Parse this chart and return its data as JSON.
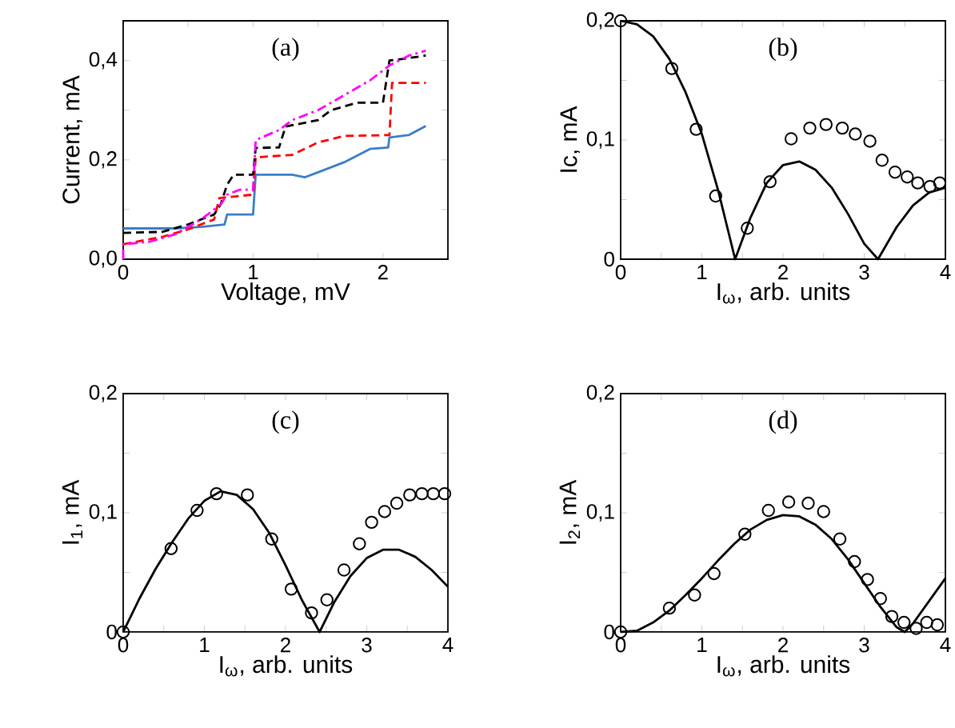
{
  "chart_data": [
    {
      "type": "line",
      "annotations": [
        "(a)"
      ],
      "xlabel": "Voltage, mV",
      "ylabel": "Current, mA",
      "xlim": [
        0,
        2.5
      ],
      "ylim": [
        0,
        0.48
      ],
      "xticks": [
        0,
        {
          "value": 0.5,
          "label": null
        },
        1,
        {
          "value": 1.5,
          "label": null
        },
        2
      ],
      "yticks": [
        {
          "value": 0,
          "label": "0,0"
        },
        {
          "value": 0.1,
          "label": null
        },
        {
          "value": 0.2,
          "label": "0,2"
        },
        {
          "value": 0.3,
          "label": null
        },
        {
          "value": 0.4,
          "label": "0,4"
        }
      ],
      "series": [
        {
          "color": "#3a7dc9",
          "line_style": "solid",
          "x": [
            0,
            0.4,
            0.6,
            0.78,
            0.8,
            1.0,
            1.02,
            1.3,
            1.4,
            1.5,
            1.7,
            1.9,
            2.04,
            2.05,
            2.2,
            2.33
          ],
          "values": [
            0.062,
            0.062,
            0.065,
            0.07,
            0.09,
            0.09,
            0.17,
            0.17,
            0.165,
            0.175,
            0.195,
            0.222,
            0.225,
            0.245,
            0.25,
            0.268
          ]
        },
        {
          "color": "#ff0000",
          "line_style": "dashed",
          "x": [
            0,
            0.3,
            0.5,
            0.7,
            0.74,
            1.0,
            1.02,
            1.3,
            1.5,
            1.7,
            2.05,
            2.07,
            2.33
          ],
          "values": [
            0.03,
            0.045,
            0.06,
            0.08,
            0.123,
            0.13,
            0.205,
            0.21,
            0.235,
            0.248,
            0.25,
            0.355,
            0.355
          ]
        },
        {
          "color": "#000000",
          "line_style": "dashed",
          "x": [
            0,
            0.3,
            0.5,
            0.7,
            0.75,
            0.8,
            0.85,
            1.0,
            1.02,
            1.2,
            1.25,
            1.5,
            1.6,
            1.8,
            2.0,
            2.05,
            2.2,
            2.33
          ],
          "values": [
            0.053,
            0.055,
            0.07,
            0.09,
            0.11,
            0.15,
            0.17,
            0.17,
            0.224,
            0.225,
            0.267,
            0.28,
            0.3,
            0.315,
            0.315,
            0.4,
            0.405,
            0.41
          ]
        },
        {
          "color": "#ff00ff",
          "line_style": "dotted",
          "x": [
            0,
            0,
            0.2,
            0.4,
            0.6,
            0.75,
            0.8,
            0.9,
            1.0,
            1.02,
            1.2,
            1.3,
            1.5,
            1.7,
            1.9,
            2.05,
            2.2,
            2.33
          ],
          "values": [
            0,
            0.03,
            0.035,
            0.05,
            0.08,
            0.11,
            0.13,
            0.14,
            0.14,
            0.24,
            0.26,
            0.28,
            0.3,
            0.33,
            0.36,
            0.39,
            0.41,
            0.42
          ]
        }
      ]
    },
    {
      "type": "scatter",
      "annotations": [
        "(b)"
      ],
      "xlabel": "I$_{ω}$, arb. units",
      "ylabel": "Ic, mA",
      "xlim": [
        0,
        4
      ],
      "ylim": [
        0,
        0.2
      ],
      "xticks": [
        0,
        {
          "value": 0.5,
          "label": null
        },
        1,
        {
          "value": 1.5,
          "label": null
        },
        2,
        {
          "value": 2.5,
          "label": null
        },
        3,
        {
          "value": 3.5,
          "label": null
        },
        4
      ],
      "yticks": [
        0,
        {
          "value": 0.05,
          "label": null
        },
        {
          "value": 0.1,
          "label": "0,1"
        },
        {
          "value": 0.15,
          "label": null
        },
        {
          "value": 0.2,
          "label": "0,2"
        }
      ],
      "series": [
        {
          "type": "scatter",
          "marker": "circle",
          "color": "#000000",
          "x": [
            0,
            0.63,
            0.93,
            1.17,
            1.56,
            1.84,
            2.1,
            2.33,
            2.53,
            2.73,
            2.89,
            3.07,
            3.22,
            3.38,
            3.53,
            3.66,
            3.81,
            3.93
          ],
          "values": [
            0.2,
            0.16,
            0.109,
            0.053,
            0.026,
            0.065,
            0.101,
            0.11,
            0.113,
            0.11,
            0.105,
            0.099,
            0.083,
            0.073,
            0.069,
            0.064,
            0.061,
            0.064
          ]
        },
        {
          "type": "line",
          "color": "#000000",
          "line_style": "solid",
          "x": [
            0,
            0.2,
            0.4,
            0.6,
            0.8,
            1.0,
            1.2,
            1.41,
            1.6,
            1.8,
            2.0,
            2.2,
            2.4,
            2.6,
            2.8,
            3.0,
            3.17,
            3.4,
            3.6,
            3.8,
            4.0
          ],
          "values": [
            0.2,
            0.197,
            0.187,
            0.168,
            0.14,
            0.105,
            0.058,
            0,
            0.035,
            0.064,
            0.079,
            0.082,
            0.075,
            0.06,
            0.038,
            0.013,
            0,
            0.027,
            0.045,
            0.056,
            0.06
          ]
        }
      ]
    },
    {
      "type": "scatter",
      "annotations": [
        "(c)"
      ],
      "xlabel": "I$_{ω}$, arb. units",
      "ylabel": "I$_{1}$, mA",
      "xlim": [
        0,
        4
      ],
      "ylim": [
        0,
        0.2
      ],
      "xticks": [
        0,
        {
          "value": 0.5,
          "label": null
        },
        1,
        {
          "value": 1.5,
          "label": null
        },
        2,
        {
          "value": 2.5,
          "label": null
        },
        3,
        {
          "value": 3.5,
          "label": null
        },
        4
      ],
      "yticks": [
        0,
        {
          "value": 0.05,
          "label": null
        },
        {
          "value": 0.1,
          "label": "0,1"
        },
        {
          "value": 0.15,
          "label": null
        },
        {
          "value": 0.2,
          "label": "0,2"
        }
      ],
      "series": [
        {
          "type": "scatter",
          "marker": "circle",
          "color": "#000000",
          "x": [
            0,
            0.59,
            0.91,
            1.15,
            1.53,
            1.83,
            2.07,
            2.32,
            2.51,
            2.72,
            2.91,
            3.06,
            3.22,
            3.37,
            3.53,
            3.68,
            3.82,
            3.96
          ],
          "values": [
            0,
            0.07,
            0.102,
            0.116,
            0.115,
            0.078,
            0.036,
            0.016,
            0.027,
            0.052,
            0.074,
            0.092,
            0.101,
            0.108,
            0.115,
            0.116,
            0.116,
            0.116
          ]
        },
        {
          "type": "line",
          "color": "#000000",
          "line_style": "solid",
          "x": [
            0,
            0.2,
            0.4,
            0.6,
            0.8,
            1.0,
            1.2,
            1.4,
            1.6,
            1.8,
            2.0,
            2.2,
            2.42,
            2.6,
            2.8,
            3.0,
            3.2,
            3.4,
            3.6,
            3.8,
            4.0
          ],
          "values": [
            0,
            0.028,
            0.053,
            0.075,
            0.095,
            0.11,
            0.118,
            0.115,
            0.103,
            0.083,
            0.056,
            0.027,
            0,
            0.025,
            0.047,
            0.062,
            0.069,
            0.069,
            0.063,
            0.052,
            0.038
          ]
        }
      ]
    },
    {
      "type": "scatter",
      "annotations": [
        "(d)"
      ],
      "xlabel": "I$_{ω}$, arb. units",
      "ylabel": "I$_{2}$, mA",
      "xlim": [
        0,
        4
      ],
      "ylim": [
        0,
        0.2
      ],
      "xticks": [
        0,
        {
          "value": 0.5,
          "label": null
        },
        1,
        {
          "value": 1.5,
          "label": null
        },
        2,
        {
          "value": 2.5,
          "label": null
        },
        3,
        {
          "value": 3.5,
          "label": null
        },
        4
      ],
      "yticks": [
        0,
        {
          "value": 0.05,
          "label": null
        },
        {
          "value": 0.1,
          "label": "0,1"
        },
        {
          "value": 0.15,
          "label": null
        },
        {
          "value": 0.2,
          "label": "0,2"
        }
      ],
      "series": [
        {
          "type": "scatter",
          "marker": "circle",
          "color": "#000000",
          "x": [
            0,
            0.6,
            0.91,
            1.15,
            1.53,
            1.82,
            2.07,
            2.31,
            2.5,
            2.7,
            2.88,
            3.04,
            3.2,
            3.34,
            3.49,
            3.64,
            3.77,
            3.9
          ],
          "values": [
            0,
            0.02,
            0.031,
            0.049,
            0.082,
            0.102,
            0.109,
            0.108,
            0.101,
            0.078,
            0.059,
            0.044,
            0.028,
            0.013,
            0.008,
            0.003,
            0.008,
            0.006
          ]
        },
        {
          "type": "line",
          "color": "#000000",
          "line_style": "solid",
          "x": [
            0,
            0.2,
            0.4,
            0.6,
            0.8,
            1.0,
            1.2,
            1.4,
            1.6,
            1.8,
            2.0,
            2.2,
            2.4,
            2.6,
            2.8,
            3.0,
            3.2,
            3.4,
            3.5,
            3.6,
            3.8,
            4.0
          ],
          "values": [
            0,
            0.001,
            0.008,
            0.018,
            0.031,
            0.045,
            0.06,
            0.074,
            0.086,
            0.094,
            0.098,
            0.097,
            0.09,
            0.078,
            0.061,
            0.041,
            0.021,
            0.004,
            0,
            0.007,
            0.026,
            0.045
          ]
        }
      ]
    }
  ]
}
